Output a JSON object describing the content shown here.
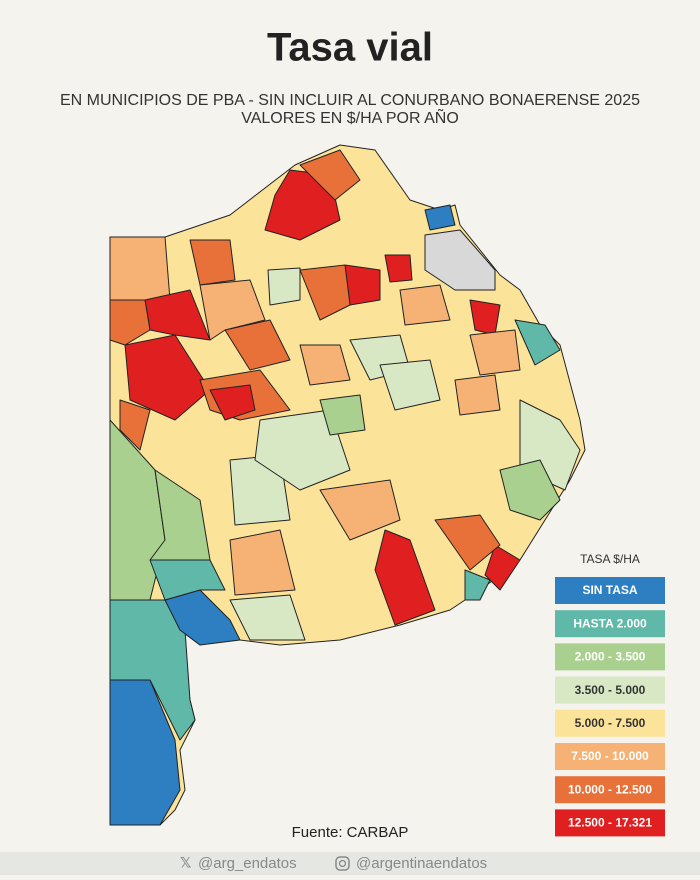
{
  "header": {
    "title": "Tasa vial",
    "subtitle": [
      "EN MUNICIPIOS DE PBA - SIN INCLUIR AL CONURBANO BONAERENSE 2025",
      "VALORES EN $/HA POR AÑO"
    ]
  },
  "legend": {
    "title": "TASA $/HA",
    "items": [
      {
        "label": "SIN TASA",
        "color": "#2e7fc1",
        "text_color": "#ffffff"
      },
      {
        "label": "HASTA 2.000",
        "color": "#5fb8a8",
        "text_color": "#ffffff"
      },
      {
        "label": "2.000 - 3.500",
        "color": "#a9d08e",
        "text_color": "#ffffff"
      },
      {
        "label": "3.500 - 5.000",
        "color": "#d9e8c4",
        "text_color": "#333333"
      },
      {
        "label": "5.000 - 7.500",
        "color": "#fbe49a",
        "text_color": "#333333"
      },
      {
        "label": "7.500 - 10.000",
        "color": "#f6b275",
        "text_color": "#ffffff"
      },
      {
        "label": "10.000 - 12.500",
        "color": "#e8713a",
        "text_color": "#ffffff"
      },
      {
        "label": "12.500 - 17.321",
        "color": "#e02020",
        "text_color": "#ffffff"
      }
    ]
  },
  "source": "Fuente: CARBAP",
  "footer": {
    "twitter": "@arg_endatos",
    "instagram": "@argentinaendatos"
  }
}
